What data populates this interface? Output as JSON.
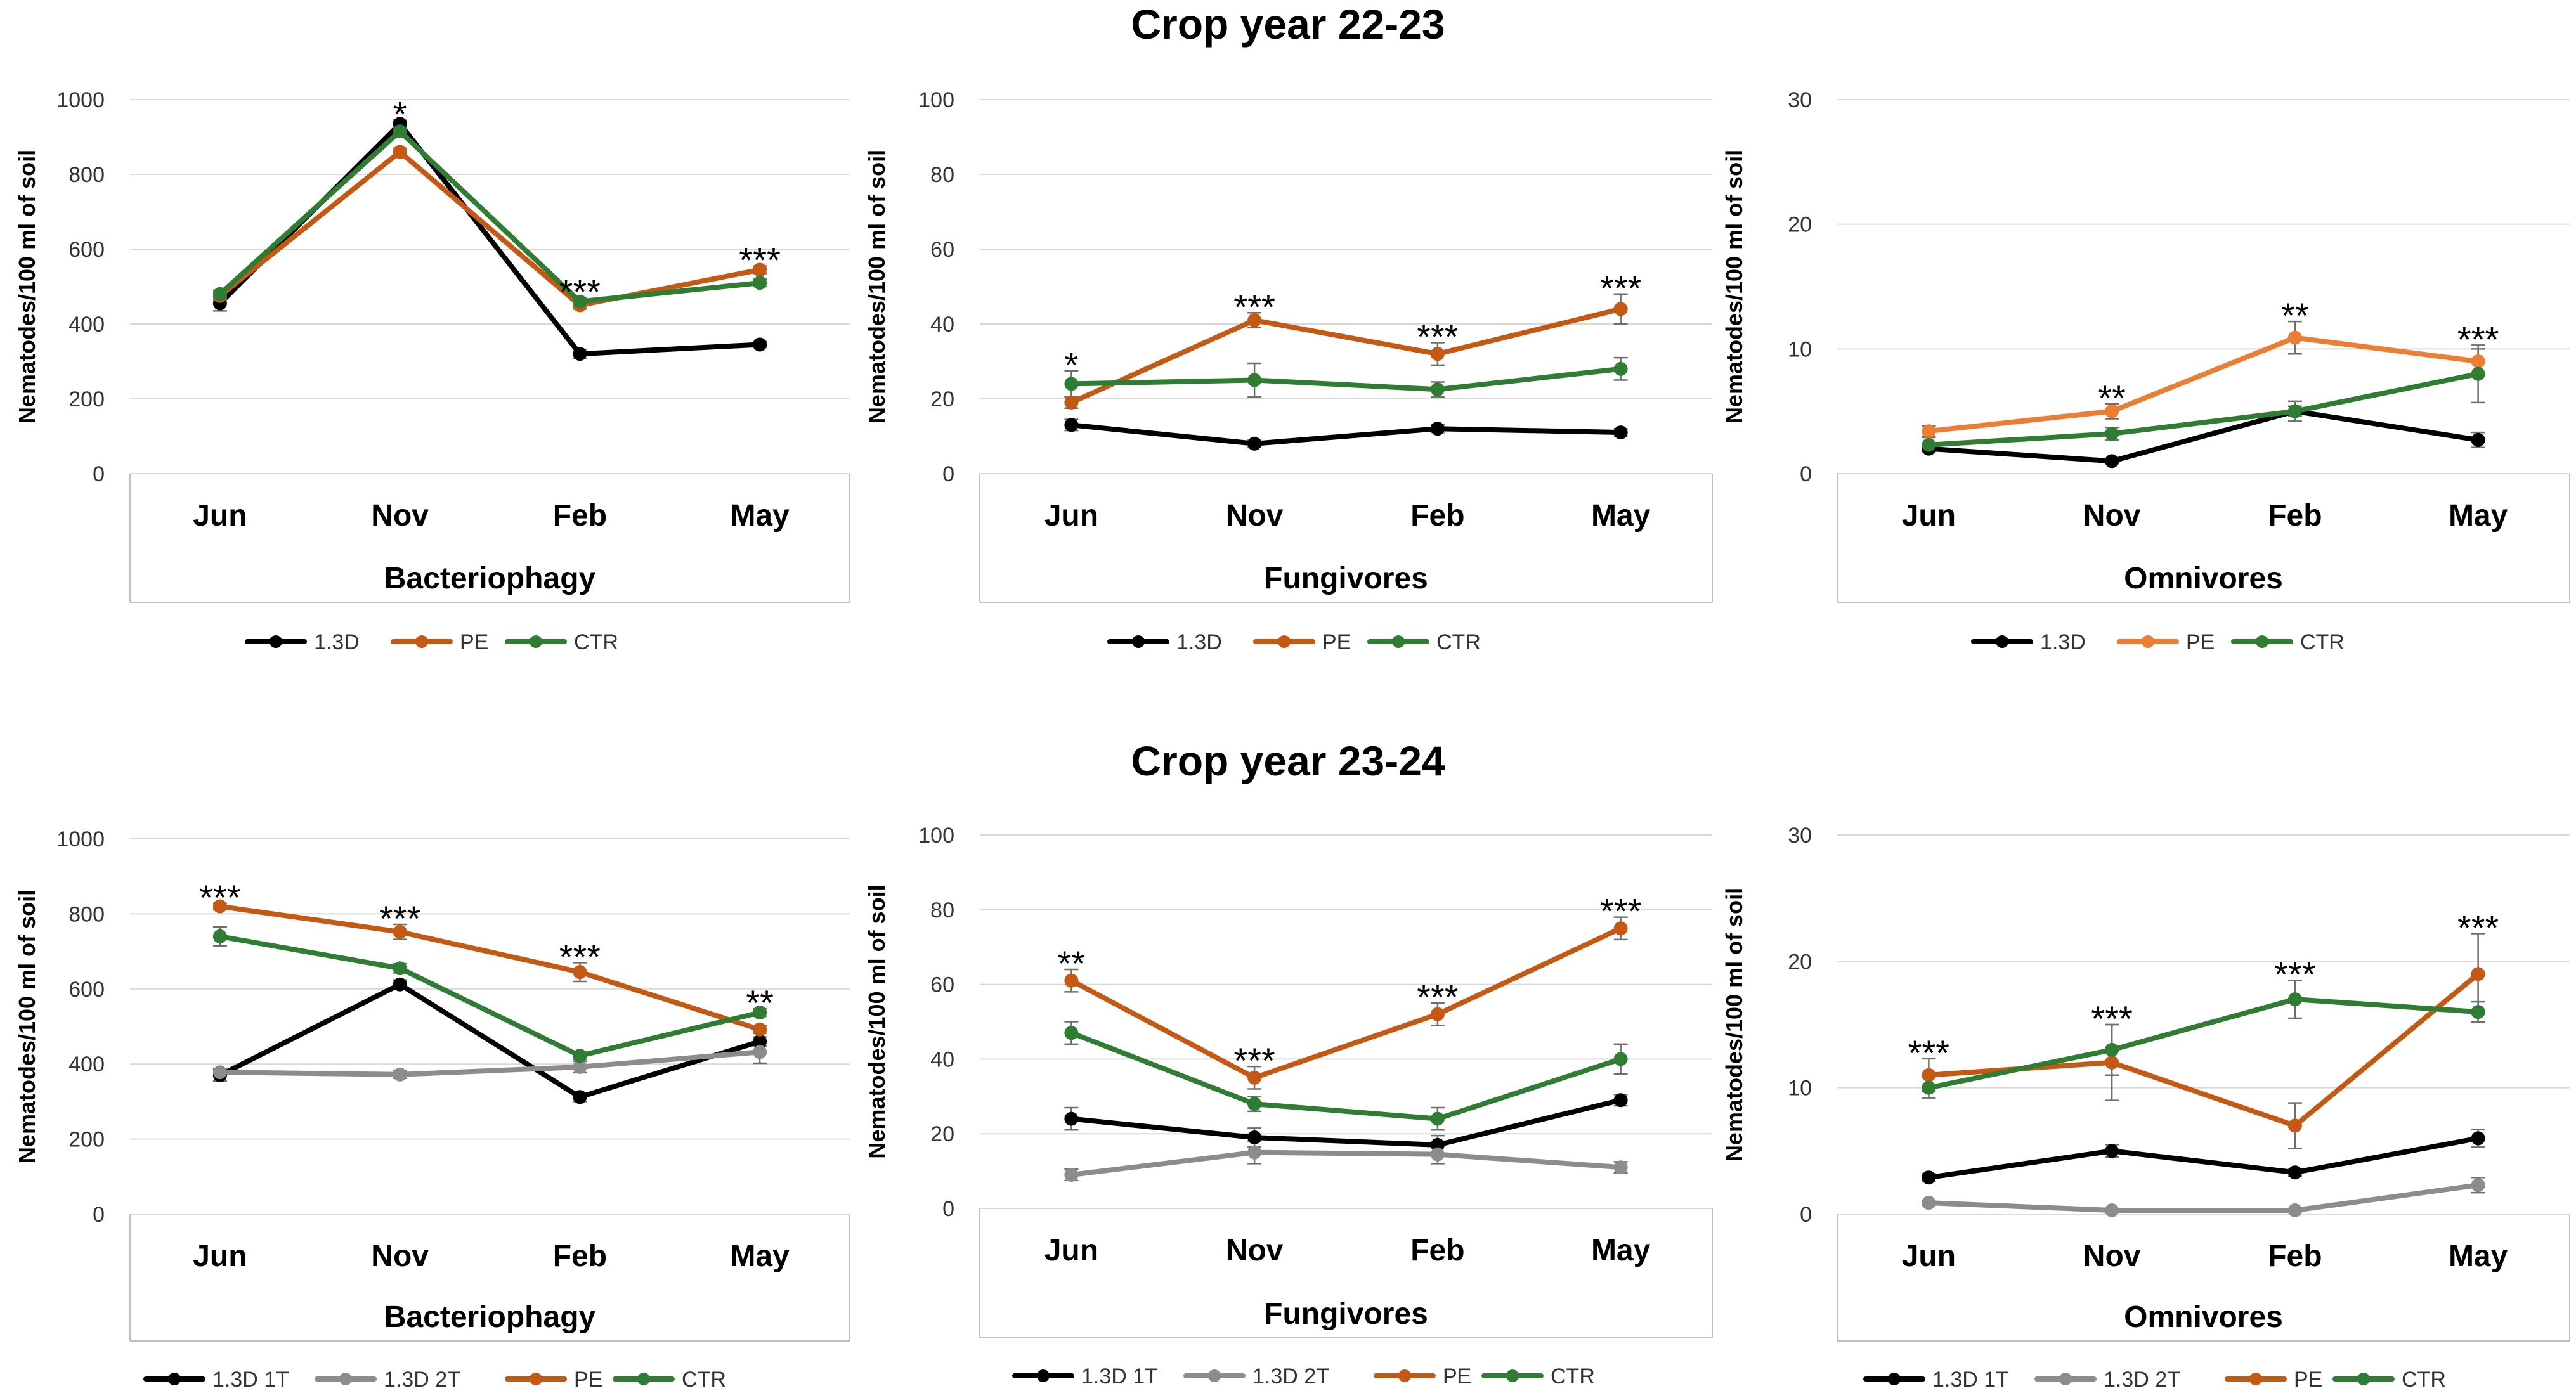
{
  "titles": {
    "top": "Crop year 22-23",
    "bottom": "Crop year 23-24"
  },
  "colors": {
    "1.3D": "#000000",
    "1.3D 1T": "#000000",
    "1.3D 2T": "#8c8c8c",
    "PE": "#c65911",
    "PE_light": "#ed7d31",
    "CTR": "#2e7d32"
  },
  "chart_data": [
    {
      "type": "line",
      "title": "Crop year 22-23",
      "xlabel": "Bacteriophagy",
      "ylabel": "Nematodes/100 ml of soil",
      "categories": [
        "Jun",
        "Nov",
        "Feb",
        "May"
      ],
      "ylim": [
        0,
        1000
      ],
      "yticks": [
        "0",
        "200",
        "400",
        "600",
        "800",
        "1000"
      ],
      "legend": "bottom",
      "significance": [
        "",
        "*",
        "***",
        "***"
      ],
      "series": [
        {
          "name": "1.3D",
          "color": "#000000",
          "values": [
            455,
            935,
            320,
            345
          ],
          "errors": [
            20,
            10,
            12,
            8
          ]
        },
        {
          "name": "PE",
          "color": "#c65911",
          "values": [
            475,
            860,
            450,
            545
          ],
          "errors": [
            10,
            10,
            10,
            10
          ]
        },
        {
          "name": "CTR",
          "color": "#2e7d32",
          "values": [
            480,
            915,
            460,
            510
          ],
          "errors": [
            10,
            10,
            10,
            10
          ]
        }
      ]
    },
    {
      "type": "line",
      "title": "Crop year 22-23",
      "xlabel": "Fungivores",
      "ylabel": "Nematodes/100 ml of soil",
      "categories": [
        "Jun",
        "Nov",
        "Feb",
        "May"
      ],
      "ylim": [
        0,
        100
      ],
      "yticks": [
        "0",
        "20",
        "40",
        "60",
        "80",
        "100"
      ],
      "legend": "bottom",
      "significance": [
        "*",
        "***",
        "***",
        "***"
      ],
      "series": [
        {
          "name": "1.3D",
          "color": "#000000",
          "values": [
            13,
            8,
            12,
            11
          ],
          "errors": [
            1.5,
            1,
            1,
            1
          ]
        },
        {
          "name": "PE",
          "color": "#c65911",
          "values": [
            19,
            41,
            32,
            44
          ],
          "errors": [
            1.5,
            2,
            3,
            4
          ]
        },
        {
          "name": "CTR",
          "color": "#2e7d32",
          "values": [
            24,
            25,
            22.5,
            28
          ],
          "errors": [
            3.5,
            4.5,
            2,
            3
          ]
        }
      ]
    },
    {
      "type": "line",
      "title": "Crop year 22-23",
      "xlabel": "Omnivores",
      "ylabel": "Nematodes/100 ml of soil",
      "categories": [
        "Jun",
        "Nov",
        "Feb",
        "May"
      ],
      "ylim": [
        0,
        30
      ],
      "yticks": [
        "0",
        "10",
        "20",
        "30"
      ],
      "legend": "bottom",
      "significance": [
        "",
        "**",
        "**",
        "***"
      ],
      "series": [
        {
          "name": "1.3D",
          "color": "#000000",
          "values": [
            2,
            1,
            5,
            2.7
          ],
          "errors": [
            0.3,
            0.2,
            0.4,
            0.6
          ]
        },
        {
          "name": "PE",
          "color": "#ed7d31",
          "values": [
            3.4,
            5,
            10.9,
            9
          ],
          "errors": [
            0.4,
            0.6,
            1.3,
            1
          ]
        },
        {
          "name": "CTR",
          "color": "#2e7d32",
          "values": [
            2.3,
            3.2,
            5,
            8
          ],
          "errors": [
            0.6,
            0.5,
            0.8,
            2.3
          ]
        }
      ]
    },
    {
      "type": "line",
      "title": "Crop year 23-24",
      "xlabel": "Bacteriophagy",
      "ylabel": "Nematodes/100 ml of soil",
      "categories": [
        "Jun",
        "Nov",
        "Feb",
        "May"
      ],
      "ylim": [
        0,
        1000
      ],
      "yticks": [
        "0",
        "200",
        "400",
        "600",
        "800",
        "1000"
      ],
      "legend": "bottom",
      "significance": [
        "***",
        "***",
        "***",
        "**"
      ],
      "series": [
        {
          "name": "1.3D 1T",
          "color": "#000000",
          "values": [
            370,
            612,
            312,
            460
          ],
          "errors": [
            15,
            12,
            12,
            12
          ]
        },
        {
          "name": "1.3D 2T",
          "color": "#8c8c8c",
          "values": [
            378,
            372,
            392,
            432
          ],
          "errors": [
            10,
            10,
            15,
            30
          ]
        },
        {
          "name": "PE",
          "color": "#c65911",
          "values": [
            820,
            752,
            645,
            492
          ],
          "errors": [
            8,
            20,
            25,
            10
          ]
        },
        {
          "name": "CTR",
          "color": "#2e7d32",
          "values": [
            740,
            655,
            422,
            537
          ],
          "errors": [
            25,
            12,
            10,
            10
          ]
        }
      ]
    },
    {
      "type": "line",
      "title": "Crop year 23-24",
      "xlabel": "Fungivores",
      "ylabel": "Nematodes/100 ml of soil",
      "categories": [
        "Jun",
        "Nov",
        "Feb",
        "May"
      ],
      "ylim": [
        0,
        100
      ],
      "yticks": [
        "0",
        "20",
        "40",
        "60",
        "80",
        "100"
      ],
      "legend": "bottom",
      "significance": [
        "**",
        "***",
        "***",
        "***"
      ],
      "series": [
        {
          "name": "1.3D 1T",
          "color": "#000000",
          "values": [
            24,
            19,
            17,
            29
          ],
          "errors": [
            3,
            2.5,
            2.5,
            1.5
          ]
        },
        {
          "name": "1.3D 2T",
          "color": "#8c8c8c",
          "values": [
            9,
            15,
            14.5,
            11
          ],
          "errors": [
            1.5,
            3,
            2.5,
            1.5
          ]
        },
        {
          "name": "PE",
          "color": "#c65911",
          "values": [
            61,
            35,
            52,
            75
          ],
          "errors": [
            3,
            3,
            3,
            3
          ]
        },
        {
          "name": "CTR",
          "color": "#2e7d32",
          "values": [
            47,
            28,
            24,
            40
          ],
          "errors": [
            3,
            2,
            3,
            4
          ]
        }
      ]
    },
    {
      "type": "line",
      "title": "Crop year 23-24",
      "xlabel": "Omnivores",
      "ylabel": "Nematodes/100 ml of soil",
      "categories": [
        "Jun",
        "Nov",
        "Feb",
        "May"
      ],
      "ylim": [
        0,
        30
      ],
      "yticks": [
        "0",
        "10",
        "20",
        "30"
      ],
      "legend": "bottom",
      "significance": [
        "***",
        "***",
        "***",
        "***"
      ],
      "series": [
        {
          "name": "1.3D 1T",
          "color": "#000000",
          "values": [
            2.9,
            5,
            3.3,
            6
          ],
          "errors": [
            0.3,
            0.5,
            0.3,
            0.7
          ]
        },
        {
          "name": "1.3D 2T",
          "color": "#8c8c8c",
          "values": [
            0.9,
            0.3,
            0.3,
            2.3
          ],
          "errors": [
            0.2,
            0.1,
            0.1,
            0.6
          ]
        },
        {
          "name": "PE",
          "color": "#c65911",
          "values": [
            11,
            12,
            7,
            19
          ],
          "errors": [
            1.3,
            3,
            1.8,
            3.2
          ]
        },
        {
          "name": "CTR",
          "color": "#2e7d32",
          "values": [
            10,
            13,
            17,
            16
          ],
          "errors": [
            0.8,
            2,
            1.5,
            0.8
          ]
        }
      ]
    }
  ]
}
